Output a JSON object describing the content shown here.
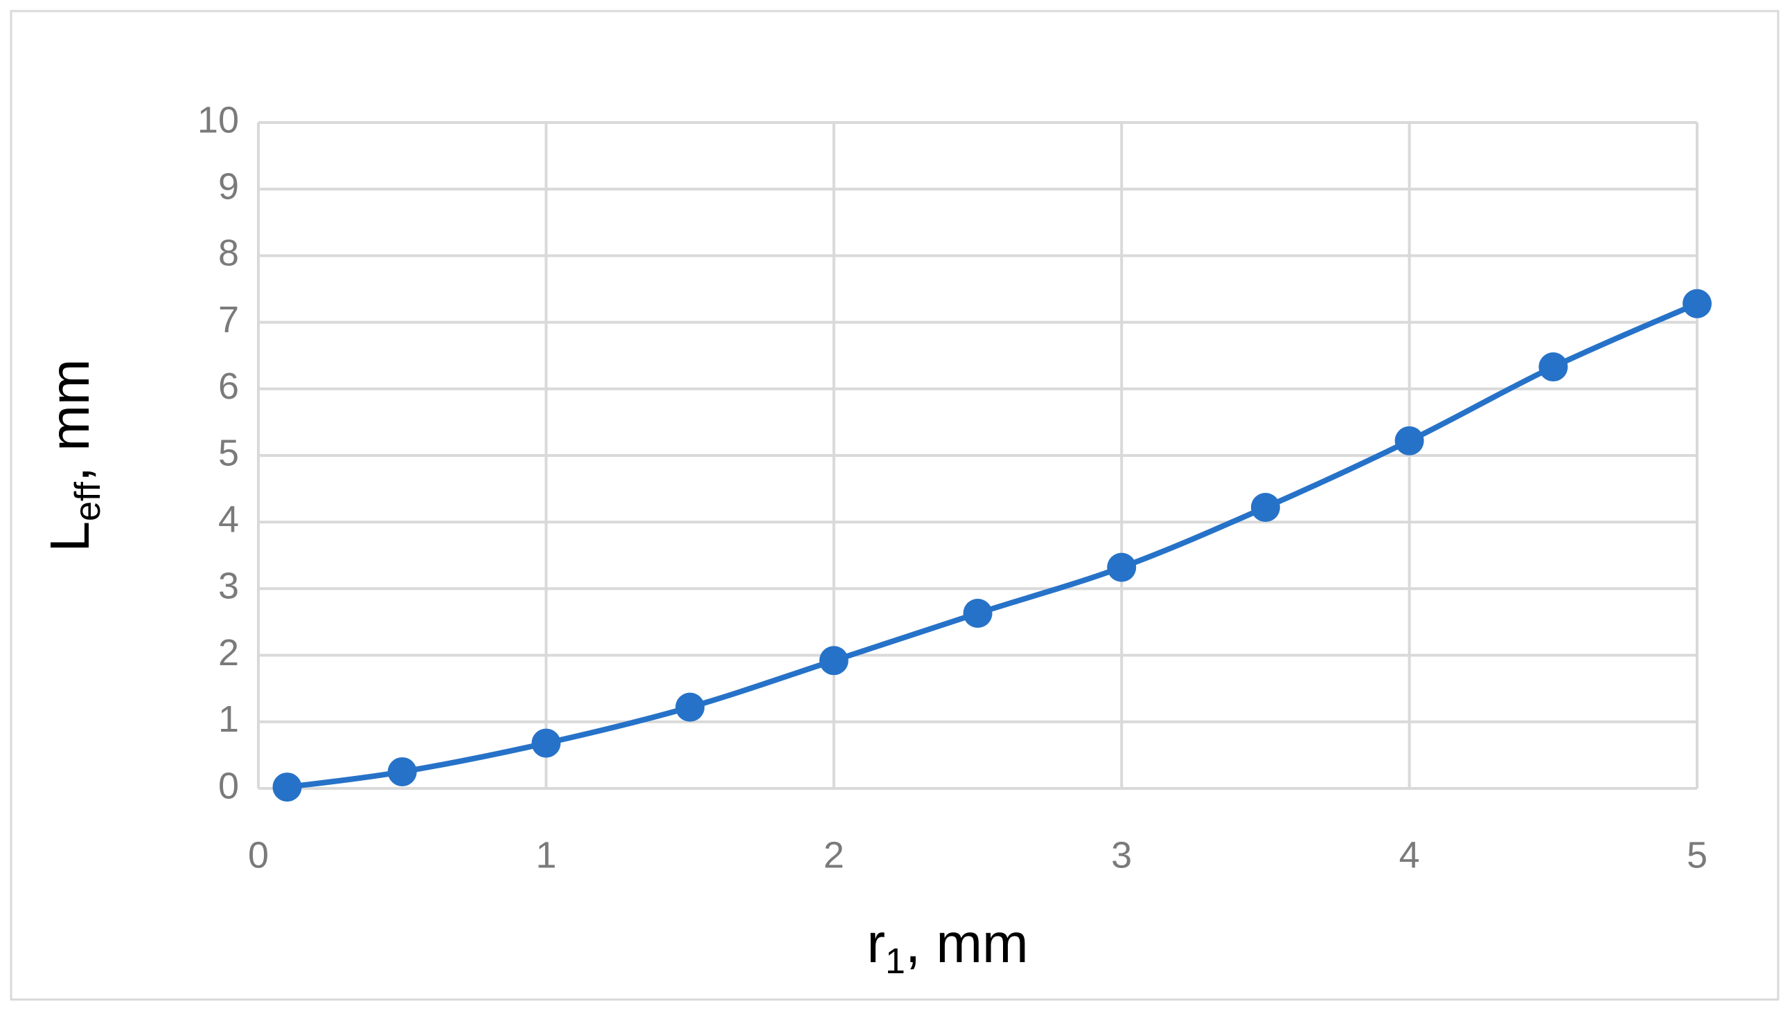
{
  "chart_data": {
    "type": "line",
    "x_label": {
      "main": "r",
      "sub": "1",
      "rest": ", mm"
    },
    "y_label": {
      "main": "L",
      "sub": "eff",
      "rest": ", mm"
    },
    "x": [
      0.1,
      0.5,
      1,
      1.5,
      2,
      2.5,
      3,
      3.5,
      4,
      4.5,
      5
    ],
    "series": [
      {
        "color": "#2672c8",
        "values": [
          0.02,
          0.25,
          0.68,
          1.22,
          1.92,
          2.63,
          3.32,
          4.22,
          5.22,
          6.33,
          7.28
        ]
      }
    ],
    "xlim": [
      0,
      5
    ],
    "xticks": [
      0,
      1,
      2,
      3,
      4,
      5
    ],
    "ylim": [
      0,
      10
    ],
    "yticks": [
      0,
      1,
      2,
      3,
      4,
      5,
      6,
      7,
      8,
      9,
      10
    ],
    "grid": true,
    "smooth": true,
    "markers": true
  }
}
